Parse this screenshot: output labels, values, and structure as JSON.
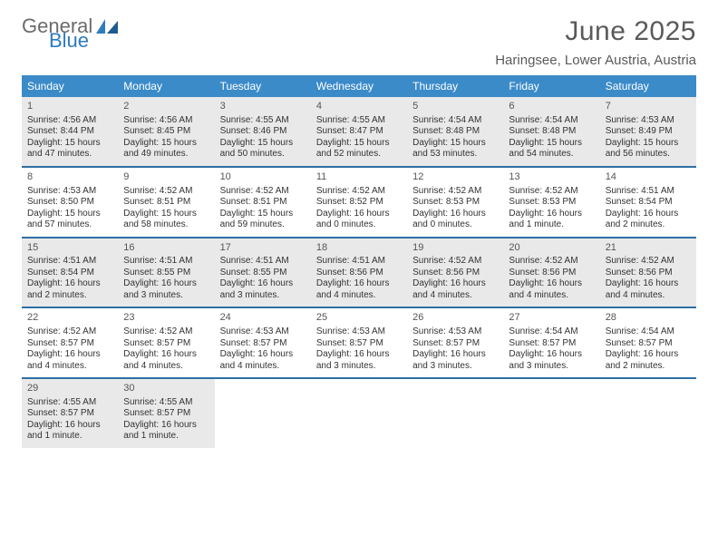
{
  "brand": {
    "word1": "General",
    "word2": "Blue"
  },
  "title": "June 2025",
  "location": "Haringsee, Lower Austria, Austria",
  "colors": {
    "header_bg": "#3b8bc9",
    "header_text": "#ffffff",
    "week_border": "#2f6fa3",
    "alt_row_bg": "#e9e9e9",
    "text": "#333333",
    "title_text": "#5a5a5a",
    "logo_gray": "#6b6b6b",
    "logo_blue": "#2f7bbf"
  },
  "typography": {
    "title_fontsize": 30,
    "location_fontsize": 15,
    "header_fontsize": 12,
    "daynum_fontsize": 11,
    "body_fontsize": 10
  },
  "layout": {
    "columns": 7,
    "rows": 5,
    "alt_rows": [
      true,
      false,
      true,
      false,
      true
    ]
  },
  "weekdays": [
    "Sunday",
    "Monday",
    "Tuesday",
    "Wednesday",
    "Thursday",
    "Friday",
    "Saturday"
  ],
  "weeks": [
    [
      {
        "n": "1",
        "sunrise": "Sunrise: 4:56 AM",
        "sunset": "Sunset: 8:44 PM",
        "dl1": "Daylight: 15 hours",
        "dl2": "and 47 minutes."
      },
      {
        "n": "2",
        "sunrise": "Sunrise: 4:56 AM",
        "sunset": "Sunset: 8:45 PM",
        "dl1": "Daylight: 15 hours",
        "dl2": "and 49 minutes."
      },
      {
        "n": "3",
        "sunrise": "Sunrise: 4:55 AM",
        "sunset": "Sunset: 8:46 PM",
        "dl1": "Daylight: 15 hours",
        "dl2": "and 50 minutes."
      },
      {
        "n": "4",
        "sunrise": "Sunrise: 4:55 AM",
        "sunset": "Sunset: 8:47 PM",
        "dl1": "Daylight: 15 hours",
        "dl2": "and 52 minutes."
      },
      {
        "n": "5",
        "sunrise": "Sunrise: 4:54 AM",
        "sunset": "Sunset: 8:48 PM",
        "dl1": "Daylight: 15 hours",
        "dl2": "and 53 minutes."
      },
      {
        "n": "6",
        "sunrise": "Sunrise: 4:54 AM",
        "sunset": "Sunset: 8:48 PM",
        "dl1": "Daylight: 15 hours",
        "dl2": "and 54 minutes."
      },
      {
        "n": "7",
        "sunrise": "Sunrise: 4:53 AM",
        "sunset": "Sunset: 8:49 PM",
        "dl1": "Daylight: 15 hours",
        "dl2": "and 56 minutes."
      }
    ],
    [
      {
        "n": "8",
        "sunrise": "Sunrise: 4:53 AM",
        "sunset": "Sunset: 8:50 PM",
        "dl1": "Daylight: 15 hours",
        "dl2": "and 57 minutes."
      },
      {
        "n": "9",
        "sunrise": "Sunrise: 4:52 AM",
        "sunset": "Sunset: 8:51 PM",
        "dl1": "Daylight: 15 hours",
        "dl2": "and 58 minutes."
      },
      {
        "n": "10",
        "sunrise": "Sunrise: 4:52 AM",
        "sunset": "Sunset: 8:51 PM",
        "dl1": "Daylight: 15 hours",
        "dl2": "and 59 minutes."
      },
      {
        "n": "11",
        "sunrise": "Sunrise: 4:52 AM",
        "sunset": "Sunset: 8:52 PM",
        "dl1": "Daylight: 16 hours",
        "dl2": "and 0 minutes."
      },
      {
        "n": "12",
        "sunrise": "Sunrise: 4:52 AM",
        "sunset": "Sunset: 8:53 PM",
        "dl1": "Daylight: 16 hours",
        "dl2": "and 0 minutes."
      },
      {
        "n": "13",
        "sunrise": "Sunrise: 4:52 AM",
        "sunset": "Sunset: 8:53 PM",
        "dl1": "Daylight: 16 hours",
        "dl2": "and 1 minute."
      },
      {
        "n": "14",
        "sunrise": "Sunrise: 4:51 AM",
        "sunset": "Sunset: 8:54 PM",
        "dl1": "Daylight: 16 hours",
        "dl2": "and 2 minutes."
      }
    ],
    [
      {
        "n": "15",
        "sunrise": "Sunrise: 4:51 AM",
        "sunset": "Sunset: 8:54 PM",
        "dl1": "Daylight: 16 hours",
        "dl2": "and 2 minutes."
      },
      {
        "n": "16",
        "sunrise": "Sunrise: 4:51 AM",
        "sunset": "Sunset: 8:55 PM",
        "dl1": "Daylight: 16 hours",
        "dl2": "and 3 minutes."
      },
      {
        "n": "17",
        "sunrise": "Sunrise: 4:51 AM",
        "sunset": "Sunset: 8:55 PM",
        "dl1": "Daylight: 16 hours",
        "dl2": "and 3 minutes."
      },
      {
        "n": "18",
        "sunrise": "Sunrise: 4:51 AM",
        "sunset": "Sunset: 8:56 PM",
        "dl1": "Daylight: 16 hours",
        "dl2": "and 4 minutes."
      },
      {
        "n": "19",
        "sunrise": "Sunrise: 4:52 AM",
        "sunset": "Sunset: 8:56 PM",
        "dl1": "Daylight: 16 hours",
        "dl2": "and 4 minutes."
      },
      {
        "n": "20",
        "sunrise": "Sunrise: 4:52 AM",
        "sunset": "Sunset: 8:56 PM",
        "dl1": "Daylight: 16 hours",
        "dl2": "and 4 minutes."
      },
      {
        "n": "21",
        "sunrise": "Sunrise: 4:52 AM",
        "sunset": "Sunset: 8:56 PM",
        "dl1": "Daylight: 16 hours",
        "dl2": "and 4 minutes."
      }
    ],
    [
      {
        "n": "22",
        "sunrise": "Sunrise: 4:52 AM",
        "sunset": "Sunset: 8:57 PM",
        "dl1": "Daylight: 16 hours",
        "dl2": "and 4 minutes."
      },
      {
        "n": "23",
        "sunrise": "Sunrise: 4:52 AM",
        "sunset": "Sunset: 8:57 PM",
        "dl1": "Daylight: 16 hours",
        "dl2": "and 4 minutes."
      },
      {
        "n": "24",
        "sunrise": "Sunrise: 4:53 AM",
        "sunset": "Sunset: 8:57 PM",
        "dl1": "Daylight: 16 hours",
        "dl2": "and 4 minutes."
      },
      {
        "n": "25",
        "sunrise": "Sunrise: 4:53 AM",
        "sunset": "Sunset: 8:57 PM",
        "dl1": "Daylight: 16 hours",
        "dl2": "and 3 minutes."
      },
      {
        "n": "26",
        "sunrise": "Sunrise: 4:53 AM",
        "sunset": "Sunset: 8:57 PM",
        "dl1": "Daylight: 16 hours",
        "dl2": "and 3 minutes."
      },
      {
        "n": "27",
        "sunrise": "Sunrise: 4:54 AM",
        "sunset": "Sunset: 8:57 PM",
        "dl1": "Daylight: 16 hours",
        "dl2": "and 3 minutes."
      },
      {
        "n": "28",
        "sunrise": "Sunrise: 4:54 AM",
        "sunset": "Sunset: 8:57 PM",
        "dl1": "Daylight: 16 hours",
        "dl2": "and 2 minutes."
      }
    ],
    [
      {
        "n": "29",
        "sunrise": "Sunrise: 4:55 AM",
        "sunset": "Sunset: 8:57 PM",
        "dl1": "Daylight: 16 hours",
        "dl2": "and 1 minute."
      },
      {
        "n": "30",
        "sunrise": "Sunrise: 4:55 AM",
        "sunset": "Sunset: 8:57 PM",
        "dl1": "Daylight: 16 hours",
        "dl2": "and 1 minute."
      },
      null,
      null,
      null,
      null,
      null
    ]
  ]
}
